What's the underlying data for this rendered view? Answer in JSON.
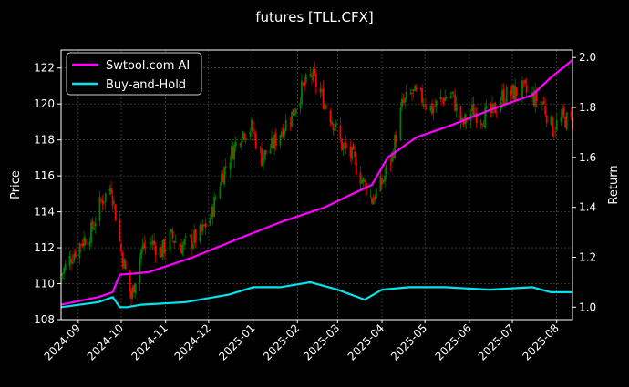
{
  "colors": {
    "background": "#000000",
    "text": "#ffffff",
    "grid": "#555555",
    "candle_up": "#008000",
    "candle_down": "#ff0000",
    "strategy": "#ff00ff",
    "benchmark": "#00e5ee"
  },
  "chart_data": {
    "type": "line",
    "title": "futures [TLL.CFX]",
    "xlabel": "",
    "ylabel_left": "Price",
    "ylabel_right": "Return",
    "grid": true,
    "legend_position": "top-left",
    "x_range": [
      "2024-08-20",
      "2025-08-12"
    ],
    "ylim_left": [
      108,
      123
    ],
    "ylim_right": [
      0.95,
      2.03
    ],
    "x_ticks": [
      "2024-09",
      "2024-10",
      "2024-11",
      "2024-12",
      "2025-01",
      "2025-02",
      "2025-03",
      "2025-04",
      "2025-05",
      "2025-06",
      "2025-07",
      "2025-08"
    ],
    "y_ticks_left": [
      108,
      110,
      112,
      114,
      116,
      118,
      120,
      122
    ],
    "y_ticks_right": [
      1.0,
      1.2,
      1.4,
      1.6,
      1.8,
      2.0
    ],
    "price_series": {
      "x": [
        "2024-08-20",
        "2024-08-27",
        "2024-09-03",
        "2024-09-10",
        "2024-09-17",
        "2024-09-24",
        "2024-10-01",
        "2024-10-08",
        "2024-10-15",
        "2024-10-22",
        "2024-10-29",
        "2024-11-05",
        "2024-11-12",
        "2024-11-19",
        "2024-11-26",
        "2024-12-03",
        "2024-12-10",
        "2024-12-17",
        "2024-12-24",
        "2024-12-31",
        "2025-01-07",
        "2025-01-14",
        "2025-01-21",
        "2025-01-28",
        "2025-02-04",
        "2025-02-11",
        "2025-02-18",
        "2025-02-25",
        "2025-03-04",
        "2025-03-11",
        "2025-03-18",
        "2025-03-25",
        "2025-04-01",
        "2025-04-08",
        "2025-04-15",
        "2025-04-22",
        "2025-04-29",
        "2025-05-06",
        "2025-05-13",
        "2025-05-20",
        "2025-05-27",
        "2025-06-03",
        "2025-06-10",
        "2025-06-17",
        "2025-06-24",
        "2025-07-01",
        "2025-07-08",
        "2025-07-15",
        "2025-07-22",
        "2025-07-29",
        "2025-08-05",
        "2025-08-12"
      ],
      "values": [
        110.5,
        111.5,
        112.3,
        112.9,
        114.6,
        115.4,
        111.8,
        109.2,
        111.9,
        112.3,
        111.8,
        112.6,
        112.1,
        112.4,
        112.8,
        113.9,
        116.0,
        117.3,
        118.4,
        118.7,
        117.0,
        117.6,
        118.6,
        119.4,
        120.8,
        121.6,
        120.4,
        119.2,
        117.7,
        117.1,
        115.8,
        114.7,
        115.6,
        117.1,
        119.9,
        120.6,
        120.3,
        119.7,
        120.3,
        120.5,
        118.8,
        119.6,
        119.3,
        119.5,
        120.4,
        120.6,
        120.8,
        120.4,
        120.1,
        118.6,
        119.2,
        119.0
      ]
    },
    "series": [
      {
        "name": "Swtool.com AI",
        "x": [
          "2024-08-20",
          "2024-09-15",
          "2024-09-25",
          "2024-09-30",
          "2024-10-20",
          "2024-11-20",
          "2024-12-20",
          "2025-01-20",
          "2025-02-20",
          "2025-03-10",
          "2025-03-25",
          "2025-04-05",
          "2025-04-25",
          "2025-05-20",
          "2025-06-20",
          "2025-07-15",
          "2025-07-28",
          "2025-08-12"
        ],
        "values": [
          1.01,
          1.04,
          1.06,
          1.13,
          1.14,
          1.2,
          1.27,
          1.34,
          1.4,
          1.45,
          1.49,
          1.6,
          1.68,
          1.73,
          1.8,
          1.85,
          1.92,
          1.99
        ]
      },
      {
        "name": "Buy-and-Hold",
        "x": [
          "2024-08-20",
          "2024-09-15",
          "2024-09-25",
          "2024-09-30",
          "2024-10-05",
          "2024-10-15",
          "2024-11-15",
          "2024-12-15",
          "2025-01-01",
          "2025-01-20",
          "2025-02-10",
          "2025-03-01",
          "2025-03-20",
          "2025-04-01",
          "2025-04-20",
          "2025-05-15",
          "2025-06-15",
          "2025-07-15",
          "2025-07-28",
          "2025-08-12"
        ],
        "values": [
          1.0,
          1.02,
          1.04,
          1.0,
          1.0,
          1.01,
          1.02,
          1.05,
          1.08,
          1.08,
          1.1,
          1.07,
          1.03,
          1.07,
          1.08,
          1.08,
          1.07,
          1.08,
          1.06,
          1.06
        ]
      }
    ]
  }
}
